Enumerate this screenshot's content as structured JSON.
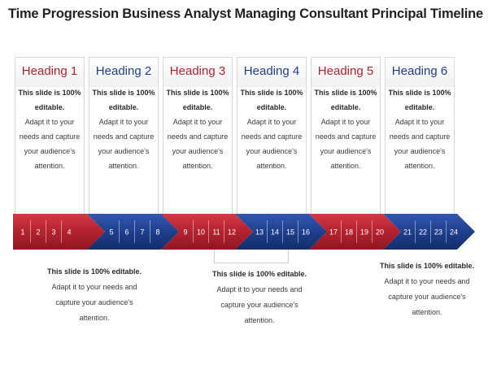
{
  "title": "Time Progression Business Analyst Managing Consultant Principal Timeline",
  "colors": {
    "red": "#b3222e",
    "blue": "#1f3f8c",
    "number_text": "#ffffff"
  },
  "columns": [
    {
      "heading": "Heading 1",
      "color": "red",
      "bold_text": "This slide is 100% editable.",
      "body": "Adapt it to your needs and capture your audience's attention."
    },
    {
      "heading": "Heading 2",
      "color": "blue",
      "bold_text": "This slide is 100% editable.",
      "body": "Adapt it to your needs and capture your audience's attention."
    },
    {
      "heading": "Heading 3",
      "color": "red",
      "bold_text": "This slide is 100% editable.",
      "body": "Adapt it to your needs and capture your audience's attention."
    },
    {
      "heading": "Heading 4",
      "color": "blue",
      "bold_text": "This slide is 100% editable.",
      "body": "Adapt it to your needs and capture your audience's attention."
    },
    {
      "heading": "Heading 5",
      "color": "red",
      "bold_text": "This slide is 100% editable.",
      "body": "Adapt it to your needs and capture your audience's attention."
    },
    {
      "heading": "Heading 6",
      "color": "blue",
      "bold_text": "This slide is 100% editable.",
      "body": "Adapt it to your needs and capture your audience's attention."
    }
  ],
  "timeline": {
    "groups": [
      {
        "color": "red",
        "numbers": [
          "1",
          "2",
          "3",
          "4"
        ]
      },
      {
        "color": "blue",
        "numbers": [
          "5",
          "6",
          "7",
          "8"
        ]
      },
      {
        "color": "red",
        "numbers": [
          "9",
          "10",
          "11",
          "12"
        ]
      },
      {
        "color": "blue",
        "numbers": [
          "13",
          "14",
          "15",
          "16"
        ]
      },
      {
        "color": "red",
        "numbers": [
          "17",
          "18",
          "19",
          "20"
        ]
      },
      {
        "color": "blue",
        "numbers": [
          "21",
          "22",
          "23",
          "24"
        ]
      }
    ]
  },
  "bottom_notes": [
    {
      "bold_text": "This slide is 100% editable.",
      "body": "Adapt it to your needs and capture your audience's attention."
    },
    {
      "bold_text": "This slide is 100% editable.",
      "body": "Adapt it to your needs and capture your audience's attention."
    },
    {
      "bold_text": "This slide is 100% editable.",
      "body": "Adapt it to your needs and capture your audience's attention."
    }
  ]
}
